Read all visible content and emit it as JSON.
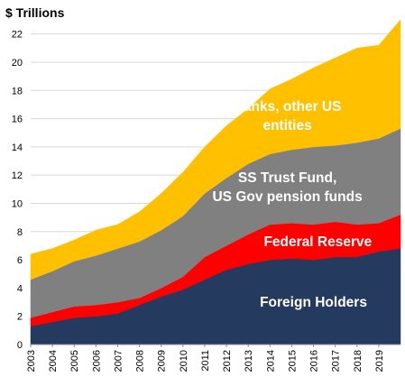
{
  "chart_data": {
    "type": "area",
    "stacked": true,
    "unit_label": "$ Trillions",
    "ylim": [
      0,
      23
    ],
    "y_ticks": [
      0,
      2,
      4,
      6,
      8,
      10,
      12,
      14,
      16,
      18,
      20,
      22
    ],
    "x_range": [
      2003,
      2020
    ],
    "x_ticks": [
      "2003",
      "2004",
      "2005",
      "2006",
      "2007",
      "2008",
      "2009",
      "2010",
      "2011",
      "2012",
      "2013",
      "2014",
      "2015",
      "2016",
      "2017",
      "2018",
      "2019"
    ],
    "x": [
      2003,
      2004,
      2005,
      2006,
      2007,
      2008,
      2009,
      2010,
      2011,
      2012,
      2013,
      2014,
      2015,
      2016,
      2017,
      2018,
      2019,
      2020
    ],
    "grid": true,
    "series": [
      {
        "id": "foreign",
        "label": "Foreign Holders",
        "color": "#243a5e",
        "text_color": "#ffffff",
        "values": [
          1.3,
          1.6,
          1.9,
          2.0,
          2.2,
          2.8,
          3.4,
          3.9,
          4.6,
          5.3,
          5.7,
          6.0,
          6.1,
          6.0,
          6.2,
          6.2,
          6.6,
          6.8
        ]
      },
      {
        "id": "fed",
        "label": "Federal Reserve",
        "color": "#ff0000",
        "text_color": "#ffffff",
        "values": [
          0.6,
          0.7,
          0.8,
          0.8,
          0.8,
          0.5,
          0.6,
          0.9,
          1.6,
          1.7,
          2.1,
          2.5,
          2.5,
          2.5,
          2.5,
          2.3,
          2.0,
          2.4
        ]
      },
      {
        "id": "trust",
        "label": "SS Trust Fund,\nUS Gov pension funds",
        "color": "#808080",
        "text_color": "#ffffff",
        "values": [
          2.7,
          2.9,
          3.2,
          3.5,
          3.8,
          4.0,
          4.1,
          4.3,
          4.5,
          4.8,
          5.0,
          5.0,
          5.2,
          5.5,
          5.4,
          5.8,
          6.0,
          6.1
        ]
      },
      {
        "id": "banks",
        "label": "Banks, other US\nentities",
        "color": "#ffc000",
        "text_color": "#ffffff",
        "values": [
          1.8,
          1.6,
          1.5,
          1.8,
          1.7,
          2.1,
          2.6,
          3.1,
          3.3,
          3.7,
          3.9,
          4.6,
          5.0,
          5.6,
          6.2,
          6.7,
          6.6,
          7.7
        ]
      }
    ]
  }
}
